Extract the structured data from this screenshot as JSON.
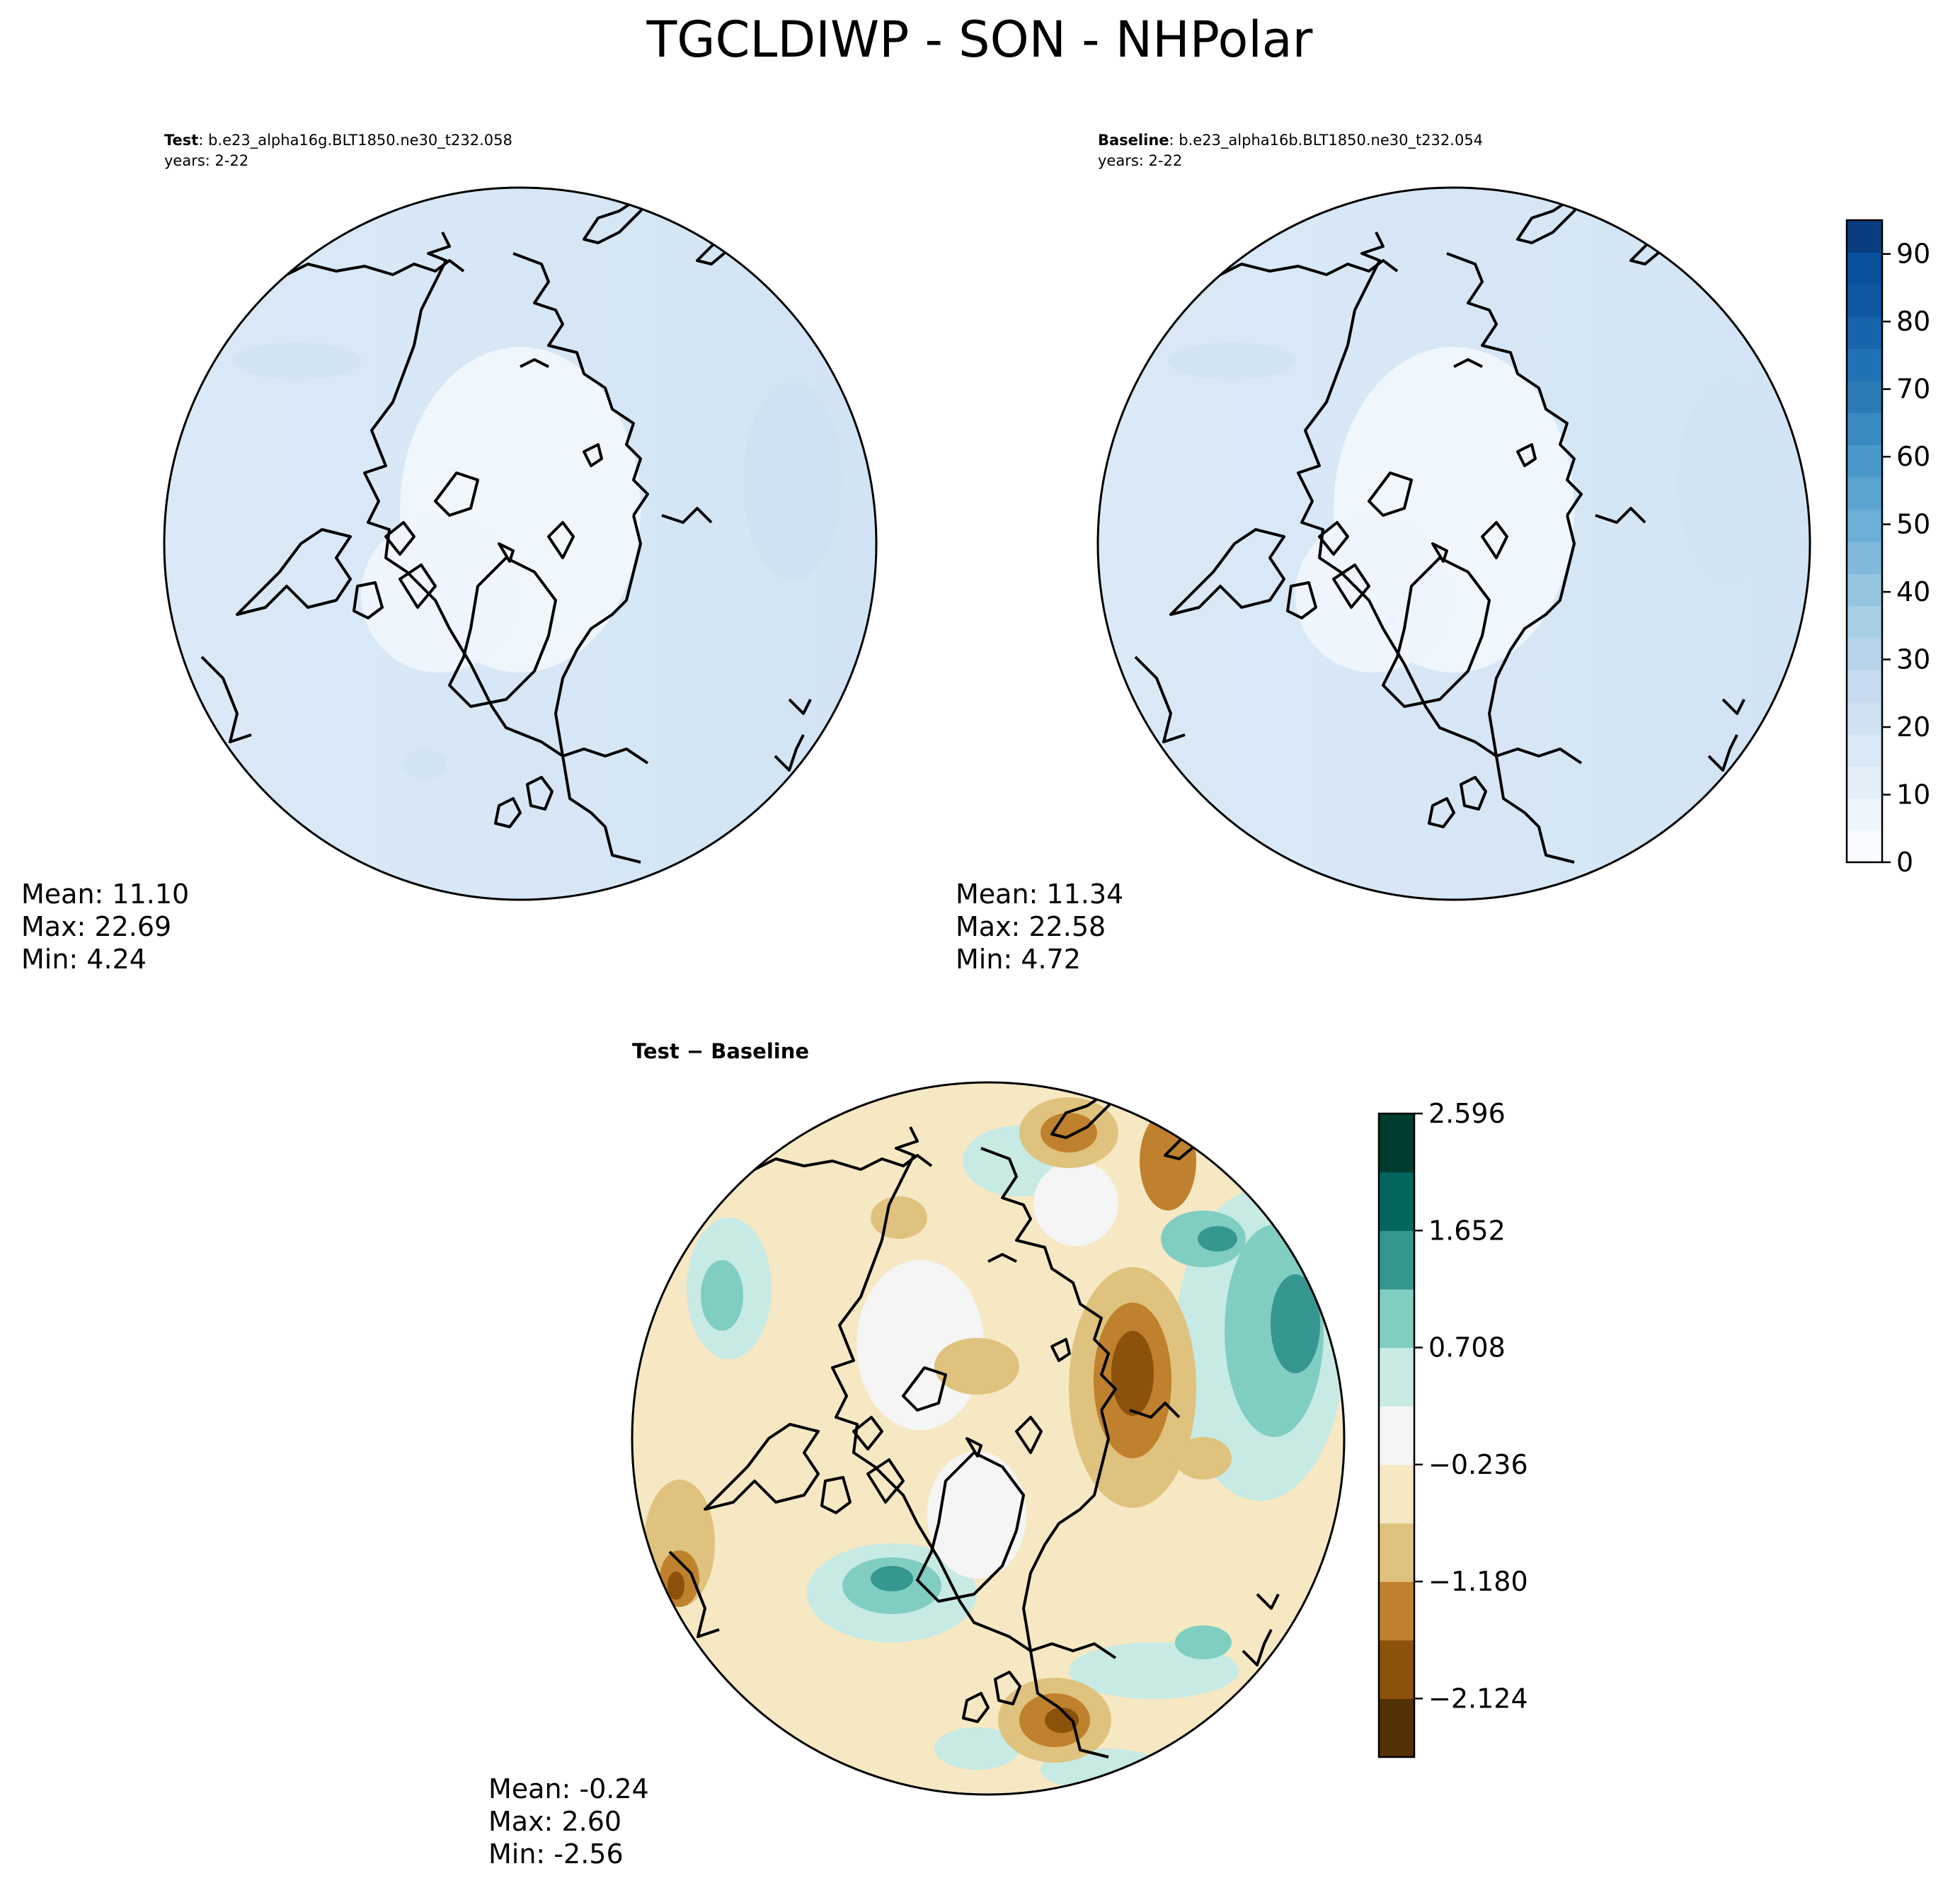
{
  "figure": {
    "title": "TGCLDIWP - SON - NHPolar"
  },
  "panels": [
    {
      "id": "test",
      "label": "Test",
      "case": ": b.e23_alpha16g.BLT1850.ne30_t232.058",
      "years": "years: 2-22",
      "stats": {
        "mean": "Mean: 11.10",
        "max": "Max: 22.69",
        "min": "Min:  4.24"
      },
      "fill_color": "#dbe9f6",
      "inner_color": "#eff6fc"
    },
    {
      "id": "baseline",
      "label": "Baseline",
      "case": ": b.e23_alpha16b.BLT1850.ne30_t232.054",
      "years": "years: 2-22",
      "stats": {
        "mean": "Mean: 11.34",
        "max": "Max: 22.58",
        "min": "Min:  4.72"
      },
      "fill_color": "#dbe9f6",
      "inner_color": "#eff6fc"
    },
    {
      "id": "diff",
      "label": "Test − Baseline",
      "stats": {
        "mean": "Mean: -0.24",
        "max": "Max:  2.60",
        "min": "Min: -2.56"
      }
    }
  ],
  "colorbars": [
    {
      "id": "abs",
      "colormap": "Blues",
      "range": [
        0,
        95
      ],
      "tick_values": [
        0,
        10,
        20,
        30,
        40,
        50,
        60,
        70,
        80,
        90
      ],
      "tick_labels": [
        "0",
        "10",
        "20",
        "30",
        "40",
        "50",
        "60",
        "70",
        "80",
        "90"
      ],
      "colors": [
        "#f7fbff",
        "#eef5fc",
        "#e3eef9",
        "#d9e8f5",
        "#cfe1f2",
        "#c6dbef",
        "#b7d4ea",
        "#a6cee4",
        "#94c4df",
        "#7fb9da",
        "#6baed6",
        "#5ba3d0",
        "#4a98c9",
        "#3a8ac2",
        "#2c7bb6",
        "#2171b5",
        "#1764ab",
        "#0e58a2",
        "#08519c",
        "#083e80"
      ]
    },
    {
      "id": "diff",
      "colormap": "BrBG",
      "range": [
        -2.596,
        2.596
      ],
      "tick_values": [
        -2.124,
        -1.18,
        -0.236,
        0.708,
        1.652,
        2.596
      ],
      "tick_labels": [
        "−2.124",
        "−1.180",
        "−0.236",
        "0.708",
        "1.652",
        "2.596"
      ],
      "colors": [
        "#543005",
        "#8c510a",
        "#bf812d",
        "#dfc27d",
        "#f6e8c3",
        "#f5f5f5",
        "#c7eae5",
        "#80cdc1",
        "#35978f",
        "#01665e",
        "#003c30"
      ]
    }
  ]
}
